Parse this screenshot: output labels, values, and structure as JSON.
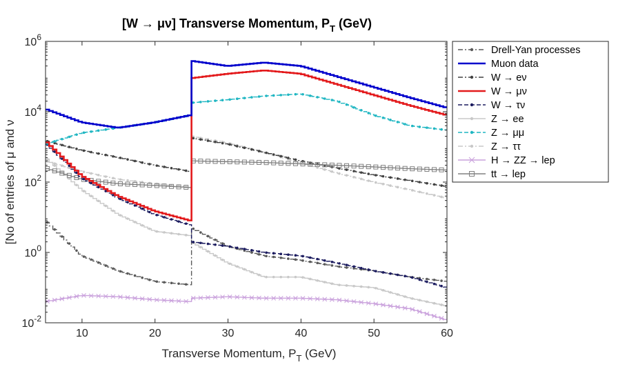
{
  "chart_data": {
    "type": "line",
    "title": "[W → μν] Transverse Momentum, P",
    "title_sub": "T",
    "title_suffix": " (GeV)",
    "xlabel": "Transverse Momentum, P",
    "xlabel_sub": "T",
    "xlabel_suffix": " (GeV)",
    "ylabel": "[No of entries of μ and ν",
    "xlim": [
      5,
      60
    ],
    "ylim": [
      0.01,
      1000000
    ],
    "yscale": "log",
    "grid": false,
    "legend_position": "outside-right",
    "x_ticks": [
      "10",
      "20",
      "30",
      "40",
      "50",
      "60"
    ],
    "y_ticks": [
      {
        "base": "10",
        "exp": "-2"
      },
      {
        "base": "10",
        "exp": "0"
      },
      {
        "base": "10",
        "exp": "2"
      },
      {
        "base": "10",
        "exp": "4"
      },
      {
        "base": "10",
        "exp": "6"
      }
    ],
    "x": [
      5,
      10,
      15,
      20,
      24.9,
      25,
      30,
      35,
      40,
      45,
      50,
      55,
      60
    ],
    "series": [
      {
        "name": "Drell-Yan processes",
        "color": "#595959",
        "style": "dashdot",
        "marker": "dot",
        "values": [
          8,
          0.8,
          0.3,
          0.15,
          0.12,
          5,
          1.5,
          0.8,
          0.6,
          0.4,
          0.3,
          0.2,
          0.15
        ]
      },
      {
        "name": "Muon data",
        "color": "#0000cc",
        "style": "solid",
        "marker": "none",
        "values": [
          12000,
          5000,
          3500,
          5000,
          8000,
          280000,
          200000,
          250000,
          200000,
          100000,
          50000,
          25000,
          13000
        ]
      },
      {
        "name": "W → eν",
        "color": "#404040",
        "style": "dashdot",
        "marker": "dot",
        "values": [
          1500,
          800,
          500,
          300,
          200,
          1800,
          1200,
          700,
          400,
          250,
          160,
          110,
          75
        ]
      },
      {
        "name": "W → μν",
        "color": "#e31a1c",
        "style": "solid",
        "marker": "none",
        "values": [
          1500,
          150,
          40,
          15,
          8,
          90000,
          120000,
          150000,
          120000,
          60000,
          30000,
          15000,
          8000
        ]
      },
      {
        "name": "W → τν",
        "color": "#1a1a5e",
        "style": "dashed",
        "marker": "dot",
        "values": [
          1300,
          130,
          35,
          12,
          6,
          2,
          1.5,
          1,
          0.8,
          0.5,
          0.3,
          0.2,
          0.1
        ]
      },
      {
        "name": "Z → ee",
        "color": "#c8c8c8",
        "style": "solid",
        "marker": "dot",
        "values": [
          500,
          60,
          12,
          4,
          3,
          2,
          0.5,
          0.2,
          0.2,
          0.12,
          0.1,
          0.05,
          0.03
        ]
      },
      {
        "name": "Z → μμ",
        "color": "#1fb6c2",
        "style": "dashed",
        "marker": "dot",
        "values": [
          1200,
          2500,
          3500,
          5000,
          8000,
          18000,
          22000,
          28000,
          32000,
          20000,
          8000,
          4000,
          3000
        ]
      },
      {
        "name": "Z → ττ",
        "color": "#c8c8c8",
        "style": "dashdot",
        "marker": "dot",
        "values": [
          400,
          200,
          120,
          90,
          70,
          2000,
          1300,
          700,
          350,
          180,
          100,
          60,
          35
        ]
      },
      {
        "name": "H → ZZ → lep",
        "color": "#c9a0dc",
        "style": "solid",
        "marker": "x",
        "values": [
          0.04,
          0.06,
          0.055,
          0.045,
          0.04,
          0.05,
          0.055,
          0.05,
          0.05,
          0.045,
          0.035,
          0.025,
          0.012
        ]
      },
      {
        "name": "tt → lep",
        "color": "#808080",
        "style": "solid",
        "marker": "square",
        "values": [
          250,
          120,
          90,
          80,
          70,
          400,
          380,
          360,
          330,
          300,
          270,
          240,
          220
        ]
      }
    ]
  }
}
